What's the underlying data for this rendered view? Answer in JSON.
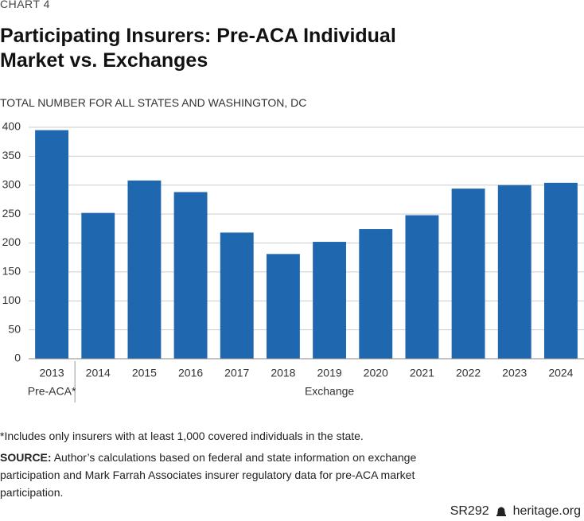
{
  "chart_data": {
    "type": "bar",
    "kicker": "CHART 4",
    "title": "Participating Insurers: Pre-ACA Individual Market vs. Exchanges",
    "subtitle": "TOTAL NUMBER FOR ALL STATES AND WASHINGTON, DC",
    "categories": [
      "2013",
      "2014",
      "2015",
      "2016",
      "2017",
      "2018",
      "2019",
      "2020",
      "2021",
      "2022",
      "2023",
      "2024"
    ],
    "values": [
      395,
      252,
      308,
      288,
      218,
      181,
      202,
      224,
      248,
      294,
      300,
      304
    ],
    "color": "#1f68b0",
    "group_labels": [
      "Pre-ACA*",
      "Exchange"
    ],
    "ylim": [
      0,
      400
    ],
    "yticks": [
      0,
      50,
      100,
      150,
      200,
      250,
      300,
      350,
      400
    ],
    "grid": true,
    "footnote": "*Includes only insurers with at least 1,000 covered individuals in the state.",
    "source_label": "SOURCE:",
    "source": "Author’s calculations based on federal and state information on exchange participation and Mark Farrah Associates insurer regulatory data for pre-ACA market participation.",
    "report": "SR292",
    "site": "heritage.org"
  }
}
